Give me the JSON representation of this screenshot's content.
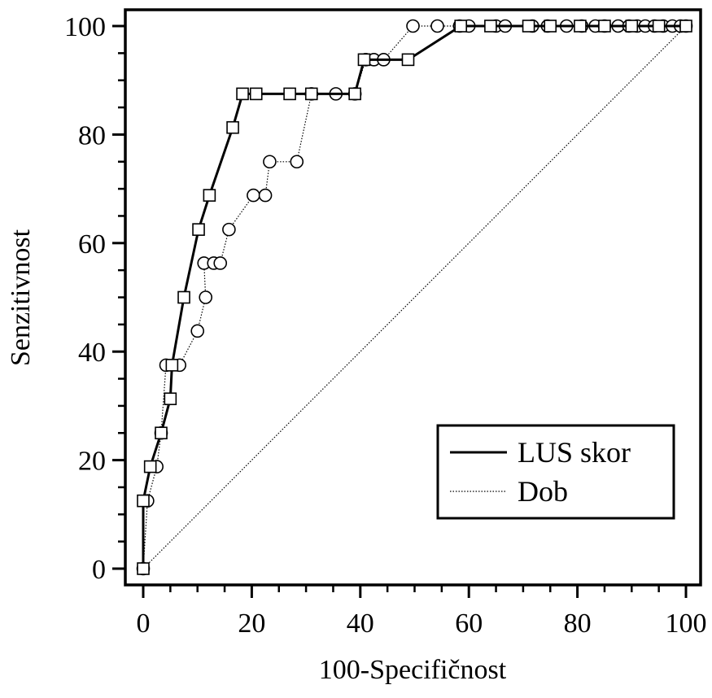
{
  "chart_data": {
    "type": "line",
    "xlabel": "100-Specifičnost",
    "ylabel": "Senzitivnost",
    "xlim": [
      0,
      100
    ],
    "ylim": [
      0,
      100
    ],
    "x_ticks": [
      "0",
      "20",
      "40",
      "60",
      "80",
      "100"
    ],
    "y_ticks": [
      "0",
      "20",
      "40",
      "60",
      "80",
      "100"
    ],
    "legend_position": "bottom-right",
    "grid": false,
    "series": [
      {
        "name": "LUS skor",
        "line_style": "solid",
        "marker": "square",
        "color": "#000000",
        "points": [
          [
            0,
            0
          ],
          [
            0,
            12.5
          ],
          [
            1.3,
            18.8
          ],
          [
            3.3,
            25
          ],
          [
            5,
            31.3
          ],
          [
            5.3,
            37.5
          ],
          [
            7.5,
            50
          ],
          [
            10.2,
            62.5
          ],
          [
            12.2,
            68.8
          ],
          [
            16.5,
            81.3
          ],
          [
            18.3,
            87.5
          ],
          [
            20.8,
            87.5
          ],
          [
            27,
            87.5
          ],
          [
            31,
            87.5
          ],
          [
            39,
            87.5
          ],
          [
            40.7,
            93.8
          ],
          [
            48.8,
            93.8
          ],
          [
            58.5,
            100
          ],
          [
            64,
            100
          ],
          [
            71,
            100
          ],
          [
            75,
            100
          ],
          [
            80.5,
            100
          ],
          [
            85,
            100
          ],
          [
            90,
            100
          ],
          [
            95,
            100
          ],
          [
            100,
            100
          ]
        ]
      },
      {
        "name": "Dob",
        "line_style": "dotted",
        "marker": "circle",
        "color": "#000000",
        "points": [
          [
            0,
            0
          ],
          [
            0.8,
            12.5
          ],
          [
            2.5,
            18.8
          ],
          [
            3.3,
            25
          ],
          [
            4.2,
            37.5
          ],
          [
            6.7,
            37.5
          ],
          [
            10,
            43.8
          ],
          [
            11.5,
            50
          ],
          [
            11.2,
            56.3
          ],
          [
            13,
            56.3
          ],
          [
            14.2,
            56.3
          ],
          [
            15.8,
            62.5
          ],
          [
            20.3,
            68.8
          ],
          [
            22.5,
            68.8
          ],
          [
            23.3,
            75
          ],
          [
            28.3,
            75
          ],
          [
            31,
            87.5
          ],
          [
            35.5,
            87.5
          ],
          [
            39,
            87.5
          ],
          [
            41,
            93.8
          ],
          [
            42.5,
            93.8
          ],
          [
            44.3,
            93.8
          ],
          [
            49.7,
            100
          ],
          [
            54.2,
            100
          ],
          [
            58.3,
            100
          ],
          [
            60,
            100
          ],
          [
            65,
            100
          ],
          [
            66.7,
            100
          ],
          [
            71.7,
            100
          ],
          [
            74.5,
            100
          ],
          [
            78,
            100
          ],
          [
            80.8,
            100
          ],
          [
            83.3,
            100
          ],
          [
            85,
            100
          ],
          [
            87.5,
            100
          ],
          [
            89.5,
            100
          ],
          [
            91,
            100
          ],
          [
            92.5,
            100
          ],
          [
            94.2,
            100
          ],
          [
            95.8,
            100
          ],
          [
            97.5,
            100
          ],
          [
            99,
            100
          ],
          [
            100,
            100
          ]
        ]
      },
      {
        "name": "",
        "line_style": "dotted",
        "marker": "none",
        "color": "#000000",
        "points": [
          [
            0,
            0
          ],
          [
            100,
            100
          ]
        ]
      }
    ]
  }
}
